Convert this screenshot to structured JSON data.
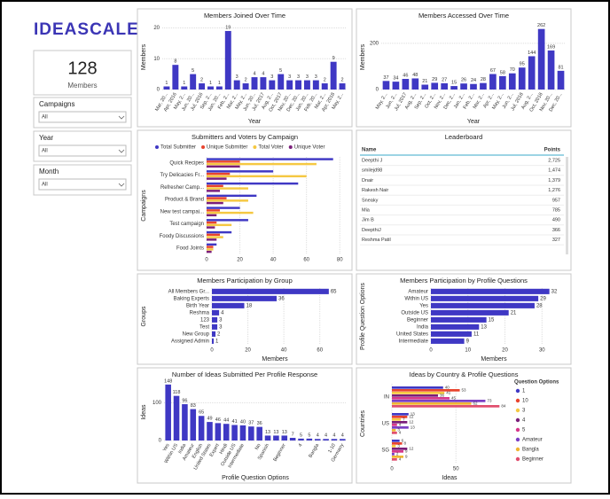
{
  "header": {
    "logo": "IDEASCALE"
  },
  "card": {
    "value": 128,
    "label": "Members"
  },
  "slicers": [
    {
      "label": "Campaigns",
      "value": "All"
    },
    {
      "label": "Year",
      "value": "All"
    },
    {
      "label": "Month",
      "value": "All"
    }
  ],
  "leaderboard": {
    "title": "Leaderboard",
    "columns": [
      "Name",
      "Points"
    ],
    "rows": [
      [
        "Deepthi J",
        "2,725"
      ],
      [
        "smilejd98",
        "1,474"
      ],
      [
        "Dnair",
        "1,379"
      ],
      [
        "Rakesh Nair",
        "1,276"
      ],
      [
        "Sneaky",
        "957"
      ],
      [
        "Mia",
        "785"
      ],
      [
        "Jim B",
        "490"
      ],
      [
        "DeepthiJ",
        "366"
      ],
      [
        "Reshma Patil",
        "327"
      ]
    ]
  },
  "chart_data": [
    {
      "type": "bar",
      "orientation": "vertical",
      "title": "Members Joined Over Time",
      "x_label": "Year",
      "y_label": "Members",
      "categories": [
        "Mar, 20...",
        "Apr, 2016",
        "May, 2...",
        "Jun, 20...",
        "Jul, 2016",
        "Sep, 2...",
        "Jan, 20...",
        "Feb, 2...",
        "Mar, 2...",
        "May, 2...",
        "Jun, 20...",
        "Jul, 2017",
        "Aug, 2...",
        "Oct, 2017",
        "Nov, 20...",
        "Dec, 20...",
        "Jan, 20...",
        "Feb, 20...",
        "Mar, 2...",
        "Apr, 2018",
        "May, 2..."
      ],
      "values": [
        1,
        8,
        1,
        5,
        2,
        1,
        1,
        19,
        3,
        2,
        4,
        4,
        3,
        5,
        3,
        3,
        3,
        3,
        2,
        9,
        2
      ],
      "color": "#3f38c4",
      "ylim": [
        0,
        21
      ],
      "yticks": [
        0,
        10,
        20
      ],
      "data_labels": true
    },
    {
      "type": "bar",
      "orientation": "vertical",
      "title": "Members Accessed Over Time",
      "x_label": "Year",
      "y_label": "Members",
      "categories": [
        "May, 2...",
        "Jun, 2...",
        "Jul, 2017",
        "Aug, 2...",
        "Sep, 2...",
        "Oct, 2...",
        "Nov, 2...",
        "Dec, 2...",
        "Jan, 2...",
        "Feb, 2...",
        "Mar, 2...",
        "Apr, 2...",
        "May, 2...",
        "Jun, 2...",
        "Jul, 2018",
        "Aug, 2...",
        "Oct, 2018",
        "Nov, 20...",
        "Dec, 20..."
      ],
      "values": [
        37,
        34,
        46,
        48,
        21,
        29,
        27,
        15,
        26,
        24,
        28,
        67,
        58,
        70,
        95,
        144,
        262,
        169,
        81
      ],
      "color": "#3f38c4",
      "ylim": [
        0,
        280
      ],
      "yticks": [
        0,
        200
      ],
      "data_labels": true
    },
    {
      "type": "bar",
      "orientation": "horizontal",
      "title": "Submitters and Voters by Campaign",
      "y_label": "Campaigns",
      "categories": [
        "Quick Recipes",
        "Try Delicacies Fr...",
        "Refresher Camp...",
        "Product & Brand",
        "New test campai...",
        "Test campaign",
        "Foody Discussions",
        "Food Joints"
      ],
      "series": [
        {
          "name": "Total Submitter",
          "color": "#3f38c4",
          "values": [
            76,
            40,
            55,
            30,
            20,
            25,
            15,
            6
          ]
        },
        {
          "name": "Unique Submitter",
          "color": "#e8442e",
          "values": [
            20,
            14,
            10,
            12,
            8,
            6,
            8,
            4
          ]
        },
        {
          "name": "Total Voter",
          "color": "#f5c842",
          "values": [
            66,
            60,
            25,
            25,
            28,
            15,
            10,
            4
          ]
        },
        {
          "name": "Unique Voter",
          "color": "#7b1e7a",
          "values": [
            20,
            12,
            8,
            10,
            6,
            5,
            6,
            3
          ]
        }
      ],
      "xlim": [
        0,
        82
      ],
      "xticks": [
        0,
        20,
        40,
        60,
        80
      ],
      "legend": "top",
      "data_labels": false
    },
    {
      "type": "bar",
      "orientation": "horizontal",
      "title": "Members Participation by Group",
      "x_label": "Members",
      "y_label": "Groups",
      "categories": [
        "All Members Gr...",
        "Baking Experts",
        "Birth Year",
        "Reshma",
        "123",
        "Test",
        "New Group",
        "Assigned Admin"
      ],
      "values": [
        65,
        36,
        18,
        4,
        3,
        3,
        2,
        1
      ],
      "color": "#3f38c4",
      "xlim": [
        0,
        70
      ],
      "xticks": [
        0,
        20,
        40,
        60
      ],
      "data_labels": true
    },
    {
      "type": "bar",
      "orientation": "horizontal",
      "title": "Members Participation by Profile Questions",
      "x_label": "Members",
      "y_label": "Profile Question Options",
      "categories": [
        "Amateur",
        "Within US",
        "Yes",
        "Outside US",
        "Beginner",
        "India",
        "United States",
        "Intermediate"
      ],
      "values": [
        32,
        29,
        28,
        21,
        15,
        13,
        11,
        9
      ],
      "color": "#3f38c4",
      "xlim": [
        0,
        34
      ],
      "xticks": [
        0,
        10,
        20,
        30
      ],
      "data_labels": true
    },
    {
      "type": "bar",
      "orientation": "vertical",
      "title": "Number of Ideas Submitted Per Profile Response",
      "x_label": "Profile Question Options",
      "y_label": "Ideas",
      "categories": [
        "Yes",
        "Within US",
        "India",
        "Amateur",
        "English",
        "United States",
        "Expert",
        "Hindi",
        "Outside US",
        "Intermediate",
        null,
        "No",
        "Spanish",
        null,
        "Beginner",
        null,
        "4",
        null,
        "Bangla",
        null,
        "1-10",
        "Germany"
      ],
      "values": [
        148,
        118,
        96,
        83,
        65,
        49,
        46,
        44,
        41,
        40,
        37,
        36,
        13,
        13,
        13,
        7,
        5,
        5,
        4,
        4,
        4,
        4
      ],
      "color": "#3f38c4",
      "ylim": [
        0,
        150
      ],
      "yticks": [
        0,
        100
      ],
      "data_labels": true
    },
    {
      "type": "bar",
      "orientation": "horizontal",
      "title": "Ideas by Country & Profile Questions",
      "x_label": "Ideas",
      "y_label": "Countries",
      "legend_title": "Question Options",
      "categories": [
        "IN",
        "US",
        "SG"
      ],
      "series": [
        {
          "name": "1",
          "color": "#3f38c4",
          "values": [
            40,
            13,
            6
          ]
        },
        {
          "name": "10",
          "color": "#e8442e",
          "values": [
            53,
            12,
            8
          ]
        },
        {
          "name": "3",
          "color": "#f5c842",
          "values": [
            41,
            7,
            3
          ]
        },
        {
          "name": "4",
          "color": "#7b1e7a",
          "values": [
            36,
            12,
            12
          ]
        },
        {
          "name": "5",
          "color": "#d6378b",
          "values": [
            45,
            4,
            9
          ]
        },
        {
          "name": "Amateur",
          "color": "#7b3fc4",
          "values": [
            73,
            13,
            2
          ]
        },
        {
          "name": "Bangla",
          "color": "#f0b531",
          "values": [
            62,
            3,
            9
          ]
        },
        {
          "name": "Beginner",
          "color": "#e04e6e",
          "values": [
            84,
            4,
            4
          ]
        }
      ],
      "xlim": [
        0,
        90
      ],
      "xticks": [
        0,
        50
      ],
      "legend": "right",
      "data_labels": true
    }
  ]
}
